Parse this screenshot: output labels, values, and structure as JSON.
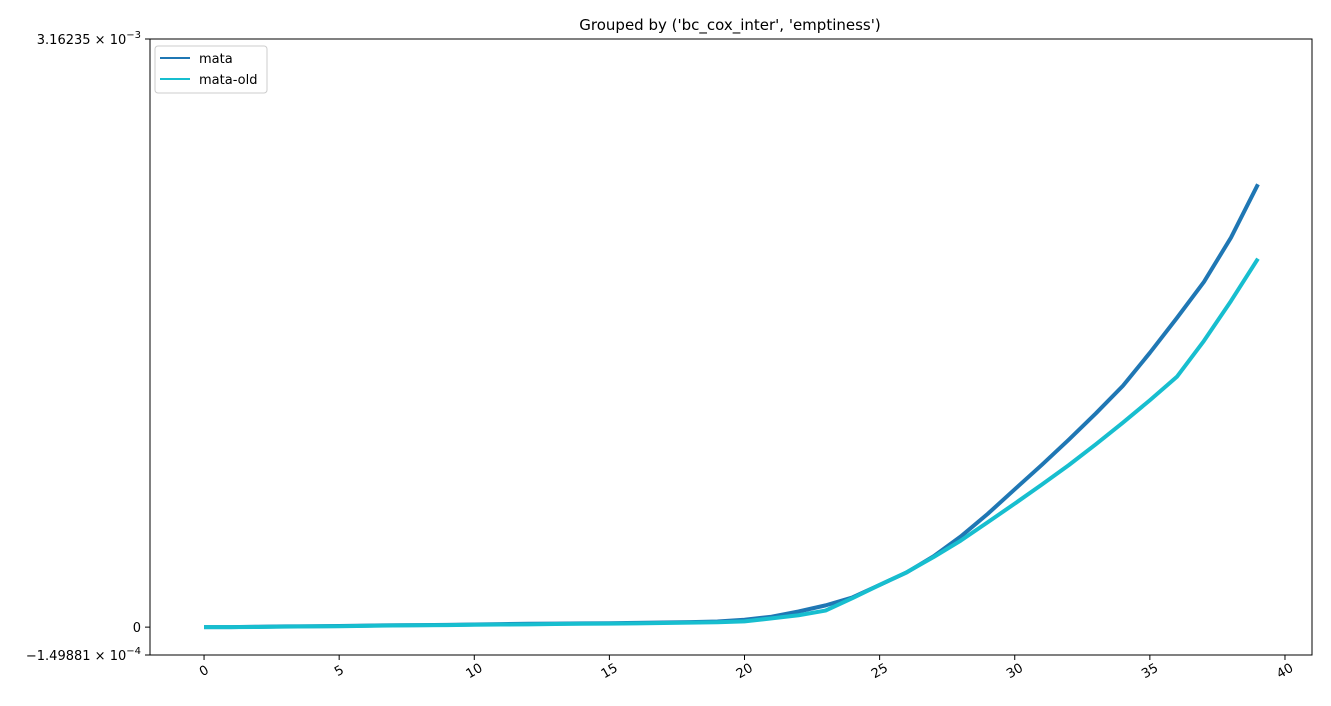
{
  "chart_data": {
    "type": "line",
    "title": "Grouped by ('bc_cox_inter', 'emptiness')",
    "xlabel": "",
    "ylabel": "",
    "xlim": [
      -2,
      41
    ],
    "ylim": [
      -0.000149881,
      0.00316235
    ],
    "xticks": [
      0,
      5,
      10,
      15,
      20,
      25,
      30,
      35,
      40
    ],
    "xtick_labels": [
      "0",
      "5",
      "10",
      "15",
      "20",
      "25",
      "30",
      "35",
      "40"
    ],
    "yticks": [
      {
        "value": -0.000149881,
        "mantissa": "−1.49881",
        "exponent": "−4"
      },
      {
        "value": 0,
        "label": "0"
      },
      {
        "value": 0.00316235,
        "mantissa": "3.16235",
        "exponent": "−3"
      }
    ],
    "times_sign": "×",
    "base": "10",
    "grid": false,
    "legend_position": "top-left",
    "x": [
      0,
      1,
      2,
      3,
      4,
      5,
      6,
      7,
      8,
      9,
      10,
      11,
      12,
      13,
      14,
      15,
      16,
      17,
      18,
      19,
      20,
      21,
      22,
      23,
      24,
      25,
      26,
      27,
      28,
      29,
      30,
      31,
      32,
      33,
      34,
      35,
      36,
      37,
      38,
      39
    ],
    "series": [
      {
        "name": "mata",
        "color": "#1f77b4",
        "values": [
          0.0,
          0.0,
          2e-06,
          4e-06,
          5e-06,
          6e-06,
          8e-06,
          1e-05,
          1.1e-05,
          1.2e-05,
          1.4e-05,
          1.6e-05,
          1.8e-05,
          1.9e-05,
          2e-05,
          2.1e-05,
          2.3e-05,
          2.5e-05,
          2.7e-05,
          3e-05,
          4e-05,
          5.6e-05,
          8.4e-05,
          0.000117,
          0.00016,
          0.000227,
          0.000294,
          0.000381,
          0.000487,
          0.000609,
          0.000741,
          0.000872,
          0.001008,
          0.001149,
          0.001297,
          0.001475,
          0.001662,
          0.001856,
          0.002094,
          0.002381
        ]
      },
      {
        "name": "mata-old",
        "color": "#17becf",
        "values": [
          0.0,
          0.0,
          1e-06,
          3e-06,
          4e-06,
          5e-06,
          7e-06,
          9e-06,
          1e-05,
          1.1e-05,
          1.3e-05,
          1.4e-05,
          1.5e-05,
          1.7e-05,
          1.8e-05,
          1.9e-05,
          2e-05,
          2.2e-05,
          2.4e-05,
          2.6e-05,
          3.1e-05,
          4.7e-05,
          6.4e-05,
          8.9e-05,
          0.000156,
          0.000227,
          0.000295,
          0.000377,
          0.000465,
          0.000564,
          0.000664,
          0.000766,
          0.000871,
          0.000983,
          0.001099,
          0.00122,
          0.001346,
          0.001539,
          0.001753,
          0.001981
        ]
      }
    ]
  }
}
